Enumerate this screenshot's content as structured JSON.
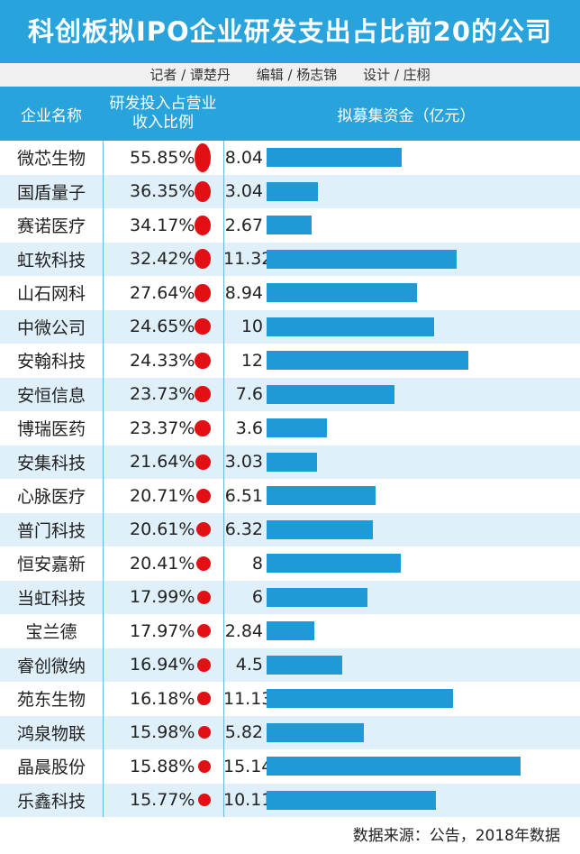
{
  "title": "科创板拟IPO企业研发支出占比前20的公司",
  "credits": {
    "reporter": "记者 / 谭楚丹",
    "editor": "编辑 / 杨志锦",
    "design": "设计 / 庄栩"
  },
  "headers": {
    "company": "企业名称",
    "ratio_line1": "研发投入占营业",
    "ratio_line2": "收入比例",
    "funds": "拟募集资金（亿元）"
  },
  "source": "数据来源：公告，2018年数据",
  "colors": {
    "header": "#29a3dc",
    "bar": "#1f9ad6",
    "dot": "#e20f14",
    "alt_row": "#dff0fa"
  },
  "chart_data": {
    "type": "table",
    "title": "科创板拟IPO企业研发支出占比前20的公司",
    "columns": [
      "企业名称",
      "研发投入占营业收入比例",
      "拟募集资金（亿元）"
    ],
    "rows": [
      {
        "company": "微芯生物",
        "ratio": "55.85%",
        "ratio_value": 55.85,
        "funds": "8.04",
        "funds_value": 8.04
      },
      {
        "company": "国盾量子",
        "ratio": "36.35%",
        "ratio_value": 36.35,
        "funds": "3.04",
        "funds_value": 3.04
      },
      {
        "company": "赛诺医疗",
        "ratio": "34.17%",
        "ratio_value": 34.17,
        "funds": "2.67",
        "funds_value": 2.67
      },
      {
        "company": "虹软科技",
        "ratio": "32.42%",
        "ratio_value": 32.42,
        "funds": "11.32",
        "funds_value": 11.32
      },
      {
        "company": "山石网科",
        "ratio": "27.64%",
        "ratio_value": 27.64,
        "funds": "8.94",
        "funds_value": 8.94
      },
      {
        "company": "中微公司",
        "ratio": "24.65%",
        "ratio_value": 24.65,
        "funds": "10",
        "funds_value": 10
      },
      {
        "company": "安翰科技",
        "ratio": "24.33%",
        "ratio_value": 24.33,
        "funds": "12",
        "funds_value": 12
      },
      {
        "company": "安恒信息",
        "ratio": "23.73%",
        "ratio_value": 23.73,
        "funds": "7.6",
        "funds_value": 7.6
      },
      {
        "company": "博瑞医药",
        "ratio": "23.37%",
        "ratio_value": 23.37,
        "funds": "3.6",
        "funds_value": 3.6
      },
      {
        "company": "安集科技",
        "ratio": "21.64%",
        "ratio_value": 21.64,
        "funds": "3.03",
        "funds_value": 3.03
      },
      {
        "company": "心脉医疗",
        "ratio": "20.71%",
        "ratio_value": 20.71,
        "funds": "6.51",
        "funds_value": 6.51
      },
      {
        "company": "普门科技",
        "ratio": "20.61%",
        "ratio_value": 20.61,
        "funds": "6.32",
        "funds_value": 6.32
      },
      {
        "company": "恒安嘉新",
        "ratio": "20.41%",
        "ratio_value": 20.41,
        "funds": "8",
        "funds_value": 8
      },
      {
        "company": "当虹科技",
        "ratio": "17.99%",
        "ratio_value": 17.99,
        "funds": "6",
        "funds_value": 6
      },
      {
        "company": "宝兰德",
        "ratio": "17.97%",
        "ratio_value": 17.97,
        "funds": "2.84",
        "funds_value": 2.84
      },
      {
        "company": "睿创微纳",
        "ratio": "16.94%",
        "ratio_value": 16.94,
        "funds": "4.5",
        "funds_value": 4.5
      },
      {
        "company": "苑东生物",
        "ratio": "16.18%",
        "ratio_value": 16.18,
        "funds": "11.13",
        "funds_value": 11.13
      },
      {
        "company": "鸿泉物联",
        "ratio": "15.98%",
        "ratio_value": 15.98,
        "funds": "5.82",
        "funds_value": 5.82
      },
      {
        "company": "晶晨股份",
        "ratio": "15.88%",
        "ratio_value": 15.88,
        "funds": "15.14",
        "funds_value": 15.14
      },
      {
        "company": "乐鑫科技",
        "ratio": "15.77%",
        "ratio_value": 15.77,
        "funds": "10.11",
        "funds_value": 10.11
      }
    ]
  }
}
